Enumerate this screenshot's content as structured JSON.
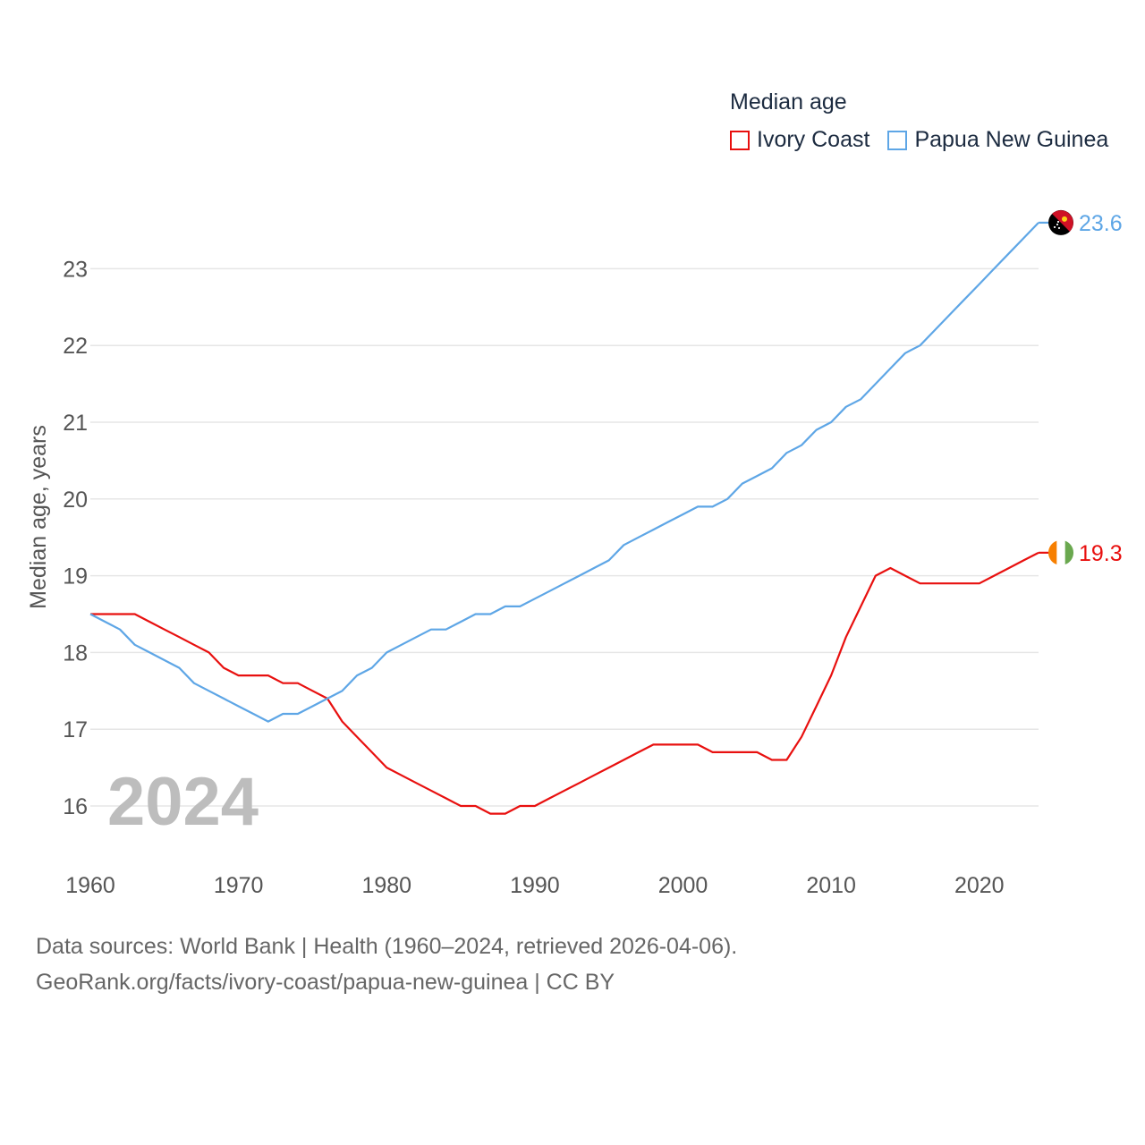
{
  "legend": {
    "title": "Median age",
    "items": [
      {
        "label": "Ivory Coast",
        "color": "#e8100f"
      },
      {
        "label": "Papua New Guinea",
        "color": "#5ea6e6"
      }
    ]
  },
  "footer": {
    "line1": "Data sources: World Bank | Health (1960–2024, retrieved 2026-04-06).",
    "line2": "GeoRank.org/facts/ivory-coast/papua-new-guinea | CC BY"
  },
  "chart_data": {
    "type": "line",
    "title": "Median age",
    "xlabel": "",
    "ylabel": "Median age, years",
    "xlim": [
      1960,
      2024
    ],
    "ylim": [
      15.5,
      23.6
    ],
    "xticks": [
      1960,
      1970,
      1980,
      1990,
      2000,
      2010,
      2020
    ],
    "yticks": [
      16,
      17,
      18,
      19,
      20,
      21,
      22,
      23
    ],
    "year_watermark": "2024",
    "x": [
      1960,
      1961,
      1962,
      1963,
      1964,
      1965,
      1966,
      1967,
      1968,
      1969,
      1970,
      1971,
      1972,
      1973,
      1974,
      1975,
      1976,
      1977,
      1978,
      1979,
      1980,
      1981,
      1982,
      1983,
      1984,
      1985,
      1986,
      1987,
      1988,
      1989,
      1990,
      1991,
      1992,
      1993,
      1994,
      1995,
      1996,
      1997,
      1998,
      1999,
      2000,
      2001,
      2002,
      2003,
      2004,
      2005,
      2006,
      2007,
      2008,
      2009,
      2010,
      2011,
      2012,
      2013,
      2014,
      2015,
      2016,
      2017,
      2018,
      2019,
      2020,
      2021,
      2022,
      2023,
      2024
    ],
    "series": [
      {
        "name": "Ivory Coast",
        "color": "#e8100f",
        "end_label": "19.3",
        "values": [
          18.5,
          18.5,
          18.5,
          18.5,
          18.4,
          18.3,
          18.2,
          18.1,
          18.0,
          17.8,
          17.7,
          17.7,
          17.7,
          17.6,
          17.6,
          17.5,
          17.4,
          17.1,
          16.9,
          16.7,
          16.5,
          16.4,
          16.3,
          16.2,
          16.1,
          16.0,
          16.0,
          15.9,
          15.9,
          16.0,
          16.0,
          16.1,
          16.2,
          16.3,
          16.4,
          16.5,
          16.6,
          16.7,
          16.8,
          16.8,
          16.8,
          16.8,
          16.7,
          16.7,
          16.7,
          16.7,
          16.6,
          16.6,
          16.9,
          17.3,
          17.7,
          18.2,
          18.6,
          19.0,
          19.1,
          19.0,
          18.9,
          18.9,
          18.9,
          18.9,
          18.9,
          19.0,
          19.1,
          19.2,
          19.3
        ]
      },
      {
        "name": "Papua New Guinea",
        "color": "#5ea6e6",
        "end_label": "23.6",
        "values": [
          18.5,
          18.4,
          18.3,
          18.1,
          18.0,
          17.9,
          17.8,
          17.6,
          17.5,
          17.4,
          17.3,
          17.2,
          17.1,
          17.2,
          17.2,
          17.3,
          17.4,
          17.5,
          17.7,
          17.8,
          18.0,
          18.1,
          18.2,
          18.3,
          18.3,
          18.4,
          18.5,
          18.5,
          18.6,
          18.6,
          18.7,
          18.8,
          18.9,
          19.0,
          19.1,
          19.2,
          19.4,
          19.5,
          19.6,
          19.7,
          19.8,
          19.9,
          19.9,
          20.0,
          20.2,
          20.3,
          20.4,
          20.6,
          20.7,
          20.9,
          21.0,
          21.2,
          21.3,
          21.5,
          21.7,
          21.9,
          22.0,
          22.2,
          22.4,
          22.6,
          22.8,
          23.0,
          23.2,
          23.4,
          23.6
        ]
      }
    ]
  }
}
